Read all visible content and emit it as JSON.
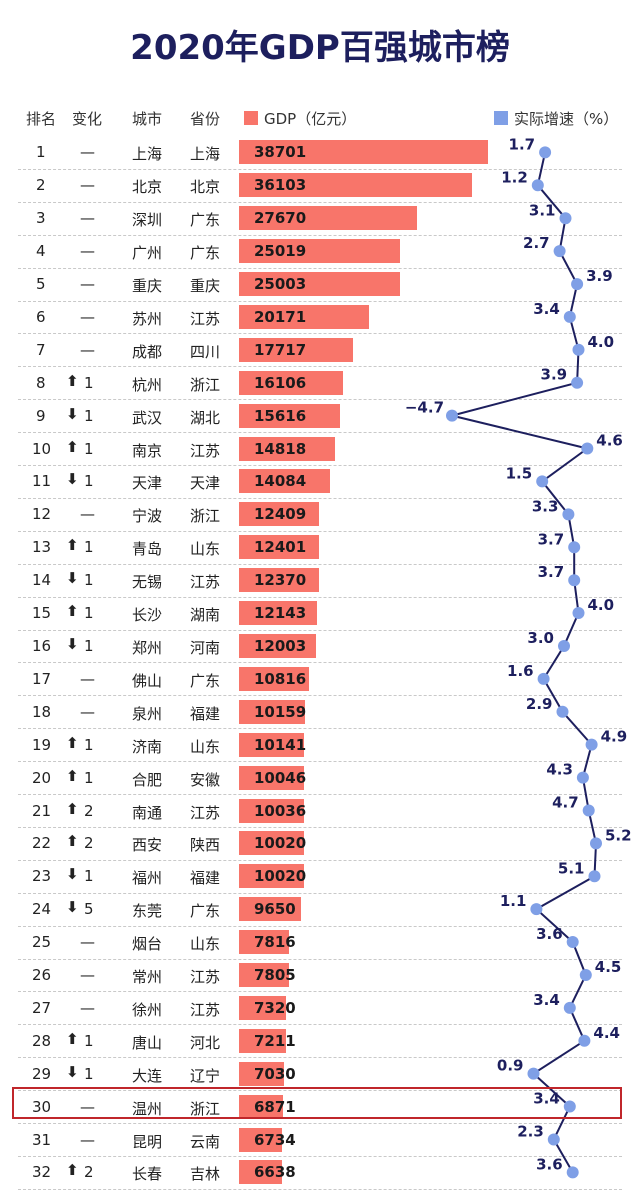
{
  "title": "2020年GDP百强城市榜",
  "headers": {
    "rank": "排名",
    "change": "变化",
    "city": "城市",
    "province": "省份",
    "gdp": "GDP（亿元）",
    "growth": "实际增速（%）"
  },
  "colors": {
    "title": "#1d1f5e",
    "bar": "#f8756a",
    "growth_point": "#7f9fe6",
    "growth_line": "#1d1f5e",
    "up_arrow": "#f0655a",
    "down_arrow": "#4f7fd8",
    "highlight_border": "#c0262b"
  },
  "chart_data": {
    "type": "bar",
    "highlighted_rank": 30,
    "gdp_axis_max": 45000,
    "growth_axis_range": [
      -5,
      6
    ],
    "rows": [
      {
        "rank": "1",
        "dir": "none",
        "delta": "",
        "city": "上海",
        "province": "上海",
        "gdp": 38701,
        "growth": 1.7
      },
      {
        "rank": "2",
        "dir": "none",
        "delta": "",
        "city": "北京",
        "province": "北京",
        "gdp": 36103,
        "growth": 1.2
      },
      {
        "rank": "3",
        "dir": "none",
        "delta": "",
        "city": "深圳",
        "province": "广东",
        "gdp": 27670,
        "growth": 3.1
      },
      {
        "rank": "4",
        "dir": "none",
        "delta": "",
        "city": "广州",
        "province": "广东",
        "gdp": 25019,
        "growth": 2.7
      },
      {
        "rank": "5",
        "dir": "none",
        "delta": "",
        "city": "重庆",
        "province": "重庆",
        "gdp": 25003,
        "growth": 3.9
      },
      {
        "rank": "6",
        "dir": "none",
        "delta": "",
        "city": "苏州",
        "province": "江苏",
        "gdp": 20171,
        "growth": 3.4
      },
      {
        "rank": "7",
        "dir": "none",
        "delta": "",
        "city": "成都",
        "province": "四川",
        "gdp": 17717,
        "growth": 4.0
      },
      {
        "rank": "8",
        "dir": "up",
        "delta": "1",
        "city": "杭州",
        "province": "浙江",
        "gdp": 16106,
        "growth": 3.9
      },
      {
        "rank": "9",
        "dir": "down",
        "delta": "1",
        "city": "武汉",
        "province": "湖北",
        "gdp": 15616,
        "growth": -4.7
      },
      {
        "rank": "10",
        "dir": "up",
        "delta": "1",
        "city": "南京",
        "province": "江苏",
        "gdp": 14818,
        "growth": 4.6
      },
      {
        "rank": "11",
        "dir": "down",
        "delta": "1",
        "city": "天津",
        "province": "天津",
        "gdp": 14084,
        "growth": 1.5
      },
      {
        "rank": "12",
        "dir": "none",
        "delta": "",
        "city": "宁波",
        "province": "浙江",
        "gdp": 12409,
        "growth": 3.3
      },
      {
        "rank": "13",
        "dir": "up",
        "delta": "1",
        "city": "青岛",
        "province": "山东",
        "gdp": 12401,
        "growth": 3.7
      },
      {
        "rank": "14",
        "dir": "down",
        "delta": "1",
        "city": "无锡",
        "province": "江苏",
        "gdp": 12370,
        "growth": 3.7
      },
      {
        "rank": "15",
        "dir": "up",
        "delta": "1",
        "city": "长沙",
        "province": "湖南",
        "gdp": 12143,
        "growth": 4.0
      },
      {
        "rank": "16",
        "dir": "down",
        "delta": "1",
        "city": "郑州",
        "province": "河南",
        "gdp": 12003,
        "growth": 3.0
      },
      {
        "rank": "17",
        "dir": "none",
        "delta": "",
        "city": "佛山",
        "province": "广东",
        "gdp": 10816,
        "growth": 1.6
      },
      {
        "rank": "18",
        "dir": "none",
        "delta": "",
        "city": "泉州",
        "province": "福建",
        "gdp": 10159,
        "growth": 2.9
      },
      {
        "rank": "19",
        "dir": "up",
        "delta": "1",
        "city": "济南",
        "province": "山东",
        "gdp": 10141,
        "growth": 4.9
      },
      {
        "rank": "20",
        "dir": "up",
        "delta": "1",
        "city": "合肥",
        "province": "安徽",
        "gdp": 10046,
        "growth": 4.3
      },
      {
        "rank": "21",
        "dir": "up",
        "delta": "2",
        "city": "南通",
        "province": "江苏",
        "gdp": 10036,
        "growth": 4.7
      },
      {
        "rank": "22",
        "dir": "up",
        "delta": "2",
        "city": "西安",
        "province": "陕西",
        "gdp": 10020,
        "growth": 5.2
      },
      {
        "rank": "23",
        "dir": "down",
        "delta": "1",
        "city": "福州",
        "province": "福建",
        "gdp": 10020,
        "growth": 5.1
      },
      {
        "rank": "24",
        "dir": "down",
        "delta": "5",
        "city": "东莞",
        "province": "广东",
        "gdp": 9650,
        "growth": 1.1
      },
      {
        "rank": "25",
        "dir": "none",
        "delta": "",
        "city": "烟台",
        "province": "山东",
        "gdp": 7816,
        "growth": 3.6
      },
      {
        "rank": "26",
        "dir": "none",
        "delta": "",
        "city": "常州",
        "province": "江苏",
        "gdp": 7805,
        "growth": 4.5
      },
      {
        "rank": "27",
        "dir": "none",
        "delta": "",
        "city": "徐州",
        "province": "江苏",
        "gdp": 7320,
        "growth": 3.4
      },
      {
        "rank": "28",
        "dir": "up",
        "delta": "1",
        "city": "唐山",
        "province": "河北",
        "gdp": 7211,
        "growth": 4.4
      },
      {
        "rank": "29",
        "dir": "down",
        "delta": "1",
        "city": "大连",
        "province": "辽宁",
        "gdp": 7030,
        "growth": 0.9
      },
      {
        "rank": "30",
        "dir": "none",
        "delta": "",
        "city": "温州",
        "province": "浙江",
        "gdp": 6871,
        "growth": 3.4
      },
      {
        "rank": "31",
        "dir": "none",
        "delta": "",
        "city": "昆明",
        "province": "云南",
        "gdp": 6734,
        "growth": 2.3
      },
      {
        "rank": "32",
        "dir": "up",
        "delta": "2",
        "city": "长春",
        "province": "吉林",
        "gdp": 6638,
        "growth": 3.6
      }
    ]
  }
}
